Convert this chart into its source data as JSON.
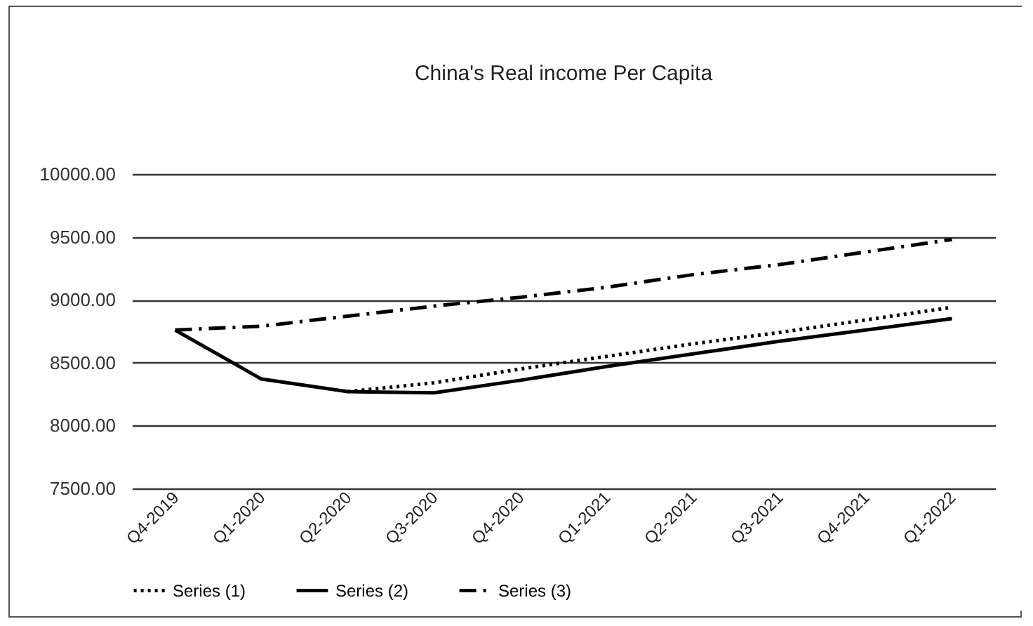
{
  "chart_data": {
    "type": "line",
    "title": "China's Real income Per Capita",
    "categories": [
      "Q4-2019",
      "Q1-2020",
      "Q2-2020",
      "Q3-2020",
      "Q4-2020",
      "Q1-2021",
      "Q2-2021",
      "Q3-2021",
      "Q4-2021",
      "Q1-2022"
    ],
    "series": [
      {
        "name": "Series (1)",
        "color": "#000000",
        "line_style": "dotted",
        "values": [
          null,
          null,
          8270,
          8340,
          8450,
          8550,
          8650,
          8740,
          8840,
          8940
        ]
      },
      {
        "name": "Series (2)",
        "color": "#000000",
        "line_style": "solid",
        "values": [
          8760,
          8370,
          8270,
          8260,
          8360,
          8470,
          8570,
          8670,
          8760,
          8850
        ]
      },
      {
        "name": "Series (3)",
        "color": "#000000",
        "line_style": "dashed",
        "values": [
          8760,
          8790,
          8870,
          8950,
          9020,
          9100,
          9200,
          9280,
          9380,
          9480
        ]
      }
    ],
    "ylim": [
      7500,
      10000
    ],
    "yticks": [
      {
        "value": 7500,
        "label": "7500.00"
      },
      {
        "value": 8000,
        "label": "8000.00"
      },
      {
        "value": 8500,
        "label": "8500.00"
      },
      {
        "value": 9000,
        "label": "9000.00"
      },
      {
        "value": 9500,
        "label": "9500.00"
      },
      {
        "value": 10000,
        "label": "10000.00"
      }
    ],
    "grid": "y",
    "legend": "bottom"
  }
}
